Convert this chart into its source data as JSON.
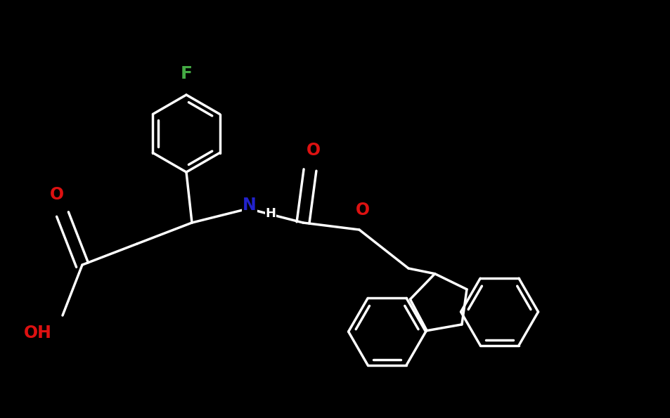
{
  "bg": "#000000",
  "wh": "#ffffff",
  "F_color": "#44aa44",
  "N_color": "#2222cc",
  "O_color": "#dd1111",
  "bw": 2.5,
  "figw": 9.54,
  "figh": 5.95,
  "dpi": 100,
  "xlim": [
    0,
    9.54
  ],
  "ylim": [
    0,
    5.95
  ]
}
